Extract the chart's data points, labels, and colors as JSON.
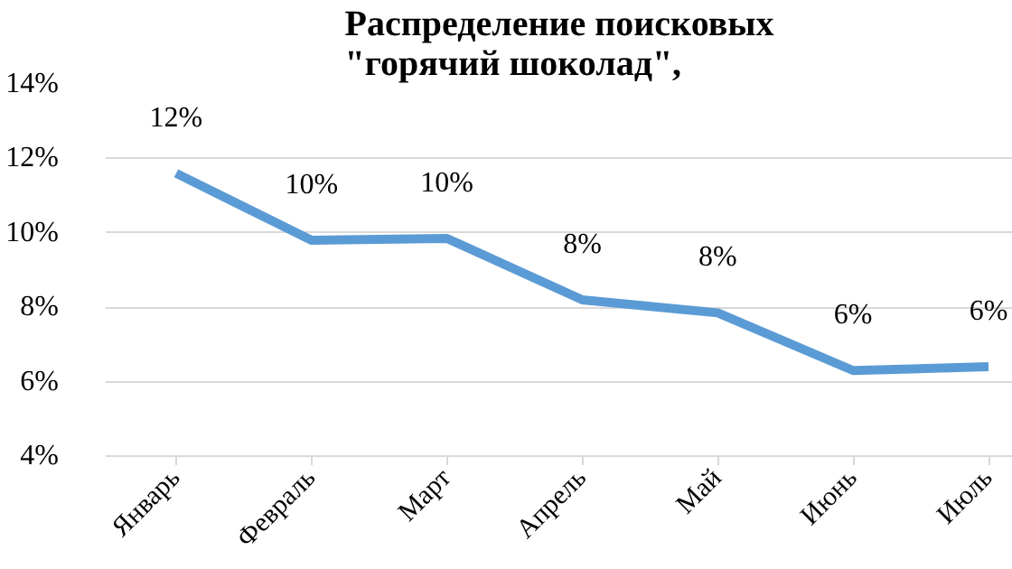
{
  "chart_data": {
    "type": "line",
    "title": "Распределение поисковых\n\"горячий шоколад\",",
    "categories": [
      "Январь",
      "Февраль",
      "Март",
      "Апрель",
      "Май",
      "Июнь",
      "Июль"
    ],
    "series": [
      {
        "color": "#5b9bd5",
        "values": [
          11.6,
          9.8,
          9.85,
          8.2,
          7.85,
          6.3,
          6.4
        ],
        "value_labels": [
          "12%",
          "10%",
          "10%",
          "8%",
          "8%",
          "6%",
          "6%"
        ]
      }
    ],
    "ylim": [
      4,
      14
    ],
    "yticks": [
      {
        "value": 4,
        "label": "4%"
      },
      {
        "value": 6,
        "label": "6%"
      },
      {
        "value": 8,
        "label": "8%"
      },
      {
        "value": 10,
        "label": "10%"
      },
      {
        "value": 12,
        "label": "12%"
      },
      {
        "value": 14,
        "label": "14%"
      }
    ],
    "grid": "y",
    "marker": "none",
    "line_style": "solid"
  }
}
